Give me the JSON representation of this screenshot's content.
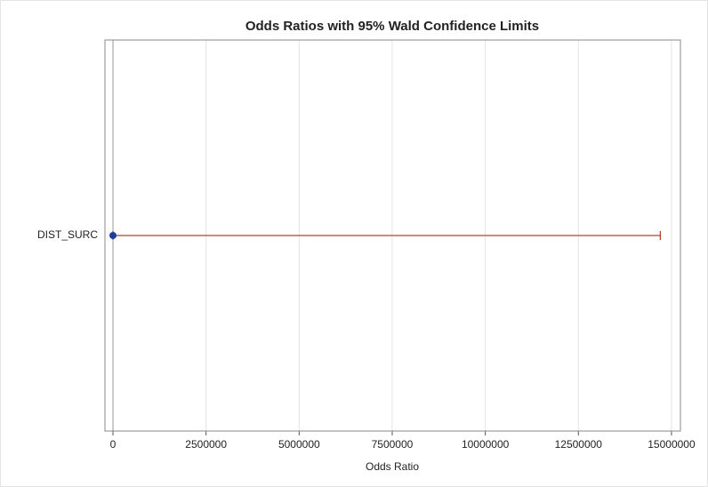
{
  "chart_data": {
    "type": "forest",
    "title": "Odds Ratios with 95% Wald Confidence Limits",
    "xlabel": "Odds Ratio",
    "categories": [
      "DIST_SURC"
    ],
    "values": [
      1
    ],
    "lower": [
      0.5
    ],
    "upper": [
      14700000
    ],
    "point_color": "#1f3f99",
    "line_color": "#b5452a",
    "refline": 1,
    "xlim": [
      -215000,
      15240000
    ],
    "xticks": [
      0,
      2500000,
      5000000,
      7500000,
      10000000,
      12500000,
      15000000
    ],
    "grid": true
  }
}
